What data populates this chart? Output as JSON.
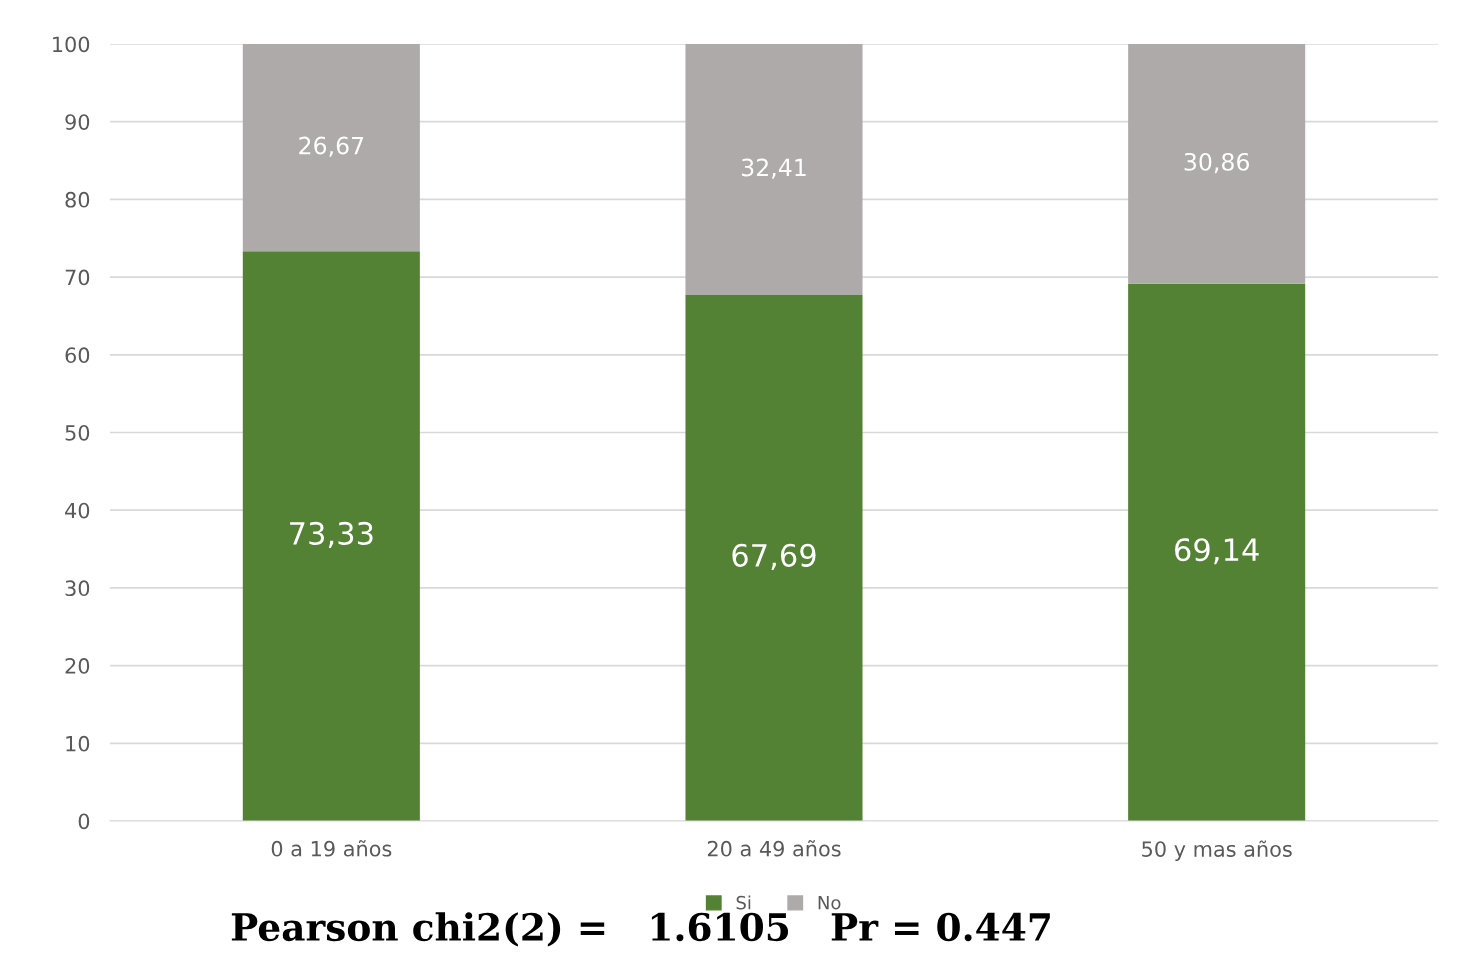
{
  "chart_data": {
    "type": "bar",
    "stacked": true,
    "categories": [
      "0 a 19 años",
      "20 a 49 años",
      "50 y mas años"
    ],
    "series": [
      {
        "name": "Si",
        "color": "#548235",
        "values": [
          73.33,
          67.69,
          69.14
        ],
        "value_labels": [
          "73,33",
          "67,69",
          "69,14"
        ]
      },
      {
        "name": "No",
        "color": "#aeaaaa",
        "values": [
          26.67,
          32.41,
          30.86
        ],
        "value_labels": [
          "26,67",
          "32,41",
          "30,86"
        ]
      }
    ],
    "ylim": [
      0,
      100
    ],
    "yticks": [
      0,
      10,
      20,
      30,
      40,
      50,
      60,
      70,
      80,
      90,
      100
    ],
    "grid": "y",
    "legend": "bottom",
    "annotations": [
      "Pearson chi2(2) =   1.6105   Pr = 0.447"
    ]
  }
}
